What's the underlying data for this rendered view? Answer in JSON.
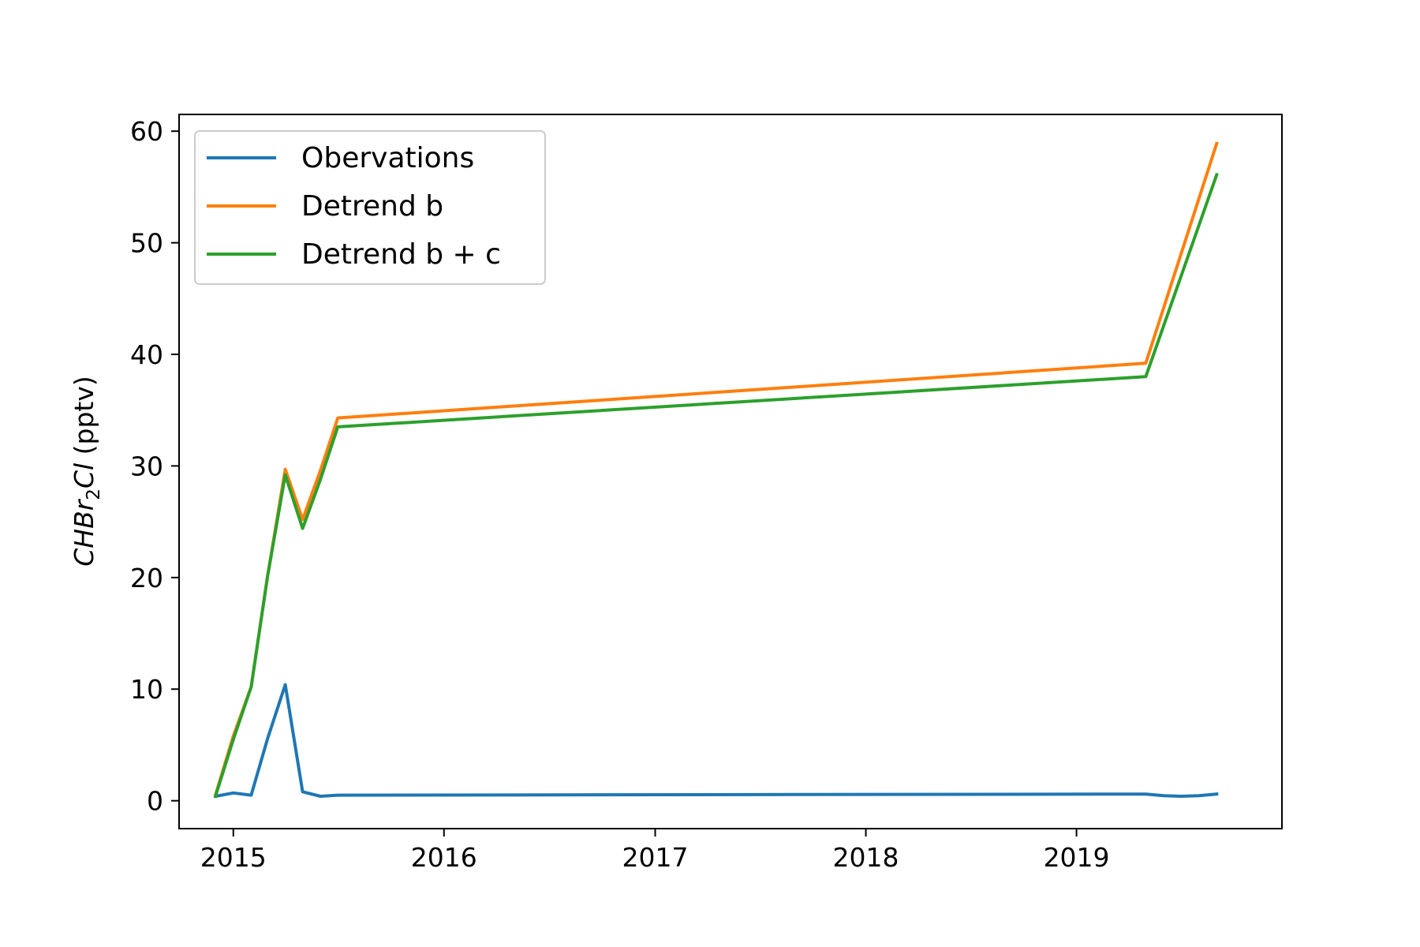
{
  "chart_data": {
    "type": "line",
    "title": "",
    "xlabel": "",
    "ylabel": {
      "molecule_main": "CHBr",
      "molecule_sub": "2",
      "molecule_tail": "Cl",
      "unit": " (pptv)"
    },
    "xlim": [
      "2014-09-29",
      "2019-12-23"
    ],
    "ylim": [
      -2.5,
      61.5
    ],
    "x_ticks": [
      "2015",
      "2016",
      "2017",
      "2018",
      "2019"
    ],
    "y_ticks": [
      "0",
      "10",
      "20",
      "30",
      "40",
      "50",
      "60"
    ],
    "grid": false,
    "legend_position": "top-left",
    "series": [
      {
        "name": "Obervations",
        "color": "#1f77b4",
        "points": [
          [
            "2014-12-01",
            0.4
          ],
          [
            "2015-01-01",
            0.7
          ],
          [
            "2015-02-01",
            0.5
          ],
          [
            "2015-03-01",
            5.5
          ],
          [
            "2015-04-01",
            10.4
          ],
          [
            "2015-05-01",
            0.8
          ],
          [
            "2015-06-01",
            0.4
          ],
          [
            "2015-07-01",
            0.5
          ],
          [
            "2019-05-01",
            0.6
          ],
          [
            "2019-06-01",
            0.45
          ],
          [
            "2019-07-01",
            0.4
          ],
          [
            "2019-08-01",
            0.45
          ],
          [
            "2019-09-01",
            0.6
          ]
        ]
      },
      {
        "name": "Detrend b",
        "color": "#ff7f0e",
        "points": [
          [
            "2014-12-01",
            0.5
          ],
          [
            "2015-01-01",
            5.8
          ],
          [
            "2015-02-01",
            10.2
          ],
          [
            "2015-03-01",
            20.0
          ],
          [
            "2015-04-01",
            29.7
          ],
          [
            "2015-05-01",
            25.2
          ],
          [
            "2015-06-01",
            29.6
          ],
          [
            "2015-07-01",
            34.3
          ],
          [
            "2019-05-01",
            39.2
          ],
          [
            "2019-09-01",
            58.9
          ]
        ]
      },
      {
        "name": "Detrend b + c",
        "color": "#2ca02c",
        "points": [
          [
            "2014-12-01",
            0.4
          ],
          [
            "2015-01-01",
            5.5
          ],
          [
            "2015-02-01",
            10.2
          ],
          [
            "2015-03-01",
            20.0
          ],
          [
            "2015-04-01",
            29.2
          ],
          [
            "2015-05-01",
            24.4
          ],
          [
            "2015-06-01",
            28.8
          ],
          [
            "2015-07-01",
            33.5
          ],
          [
            "2019-05-01",
            38.0
          ],
          [
            "2019-09-01",
            56.1
          ]
        ]
      }
    ]
  }
}
